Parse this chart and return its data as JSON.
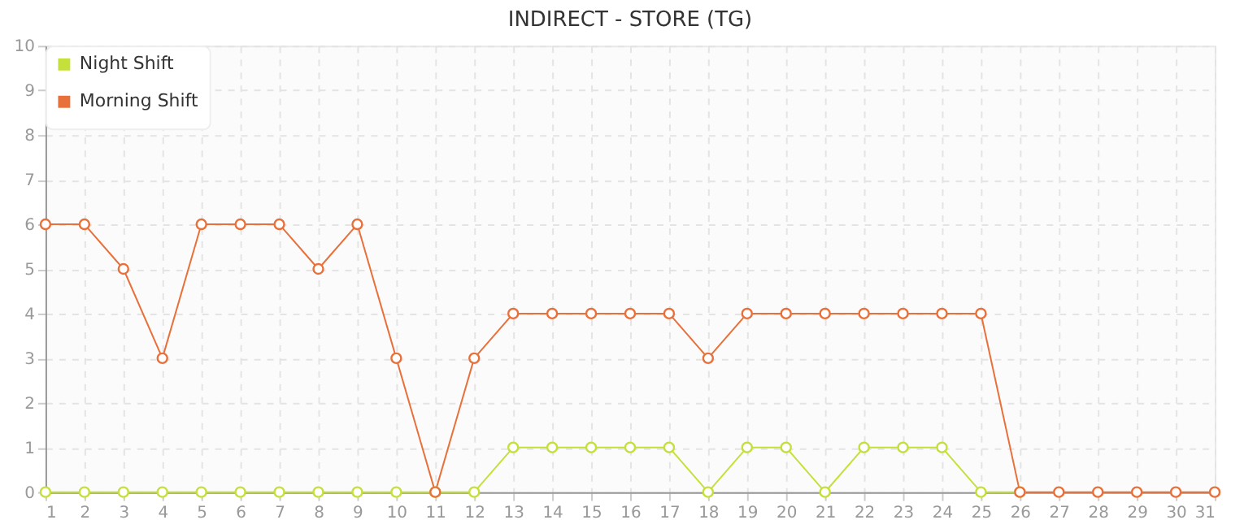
{
  "chart_data": {
    "type": "line",
    "title": "INDIRECT - STORE (TG)",
    "x": [
      1,
      2,
      3,
      4,
      5,
      6,
      7,
      8,
      9,
      10,
      11,
      12,
      13,
      14,
      15,
      16,
      17,
      18,
      19,
      20,
      21,
      22,
      23,
      24,
      25,
      26,
      27,
      28,
      29,
      30,
      31
    ],
    "series": [
      {
        "name": "Night Shift",
        "color": "#c5e03a",
        "values": [
          0,
          0,
          0,
          0,
          0,
          0,
          0,
          0,
          0,
          0,
          0,
          0,
          1,
          1,
          1,
          1,
          1,
          0,
          1,
          1,
          0,
          1,
          1,
          1,
          0,
          0,
          null,
          null,
          null,
          null,
          null
        ]
      },
      {
        "name": "Morning Shift",
        "color": "#e8703a",
        "values": [
          6,
          6,
          5,
          3,
          6,
          6,
          6,
          5,
          6,
          3,
          0,
          3,
          4,
          4,
          4,
          4,
          4,
          3,
          4,
          4,
          4,
          4,
          4,
          4,
          4,
          0,
          0,
          0,
          0,
          0,
          0
        ]
      }
    ],
    "xlim": [
      1,
      31
    ],
    "xticks": [
      1,
      2,
      3,
      4,
      5,
      6,
      7,
      8,
      9,
      10,
      11,
      12,
      13,
      14,
      15,
      16,
      17,
      18,
      19,
      20,
      21,
      22,
      23,
      24,
      25,
      26,
      27,
      28,
      29,
      30,
      31
    ],
    "ylim": [
      0,
      10
    ],
    "yticks": [
      0,
      1,
      2,
      3,
      4,
      5,
      6,
      7,
      8,
      9,
      10
    ],
    "grid": true,
    "legend": "top left",
    "marker": "circle",
    "line_style": "solid"
  }
}
